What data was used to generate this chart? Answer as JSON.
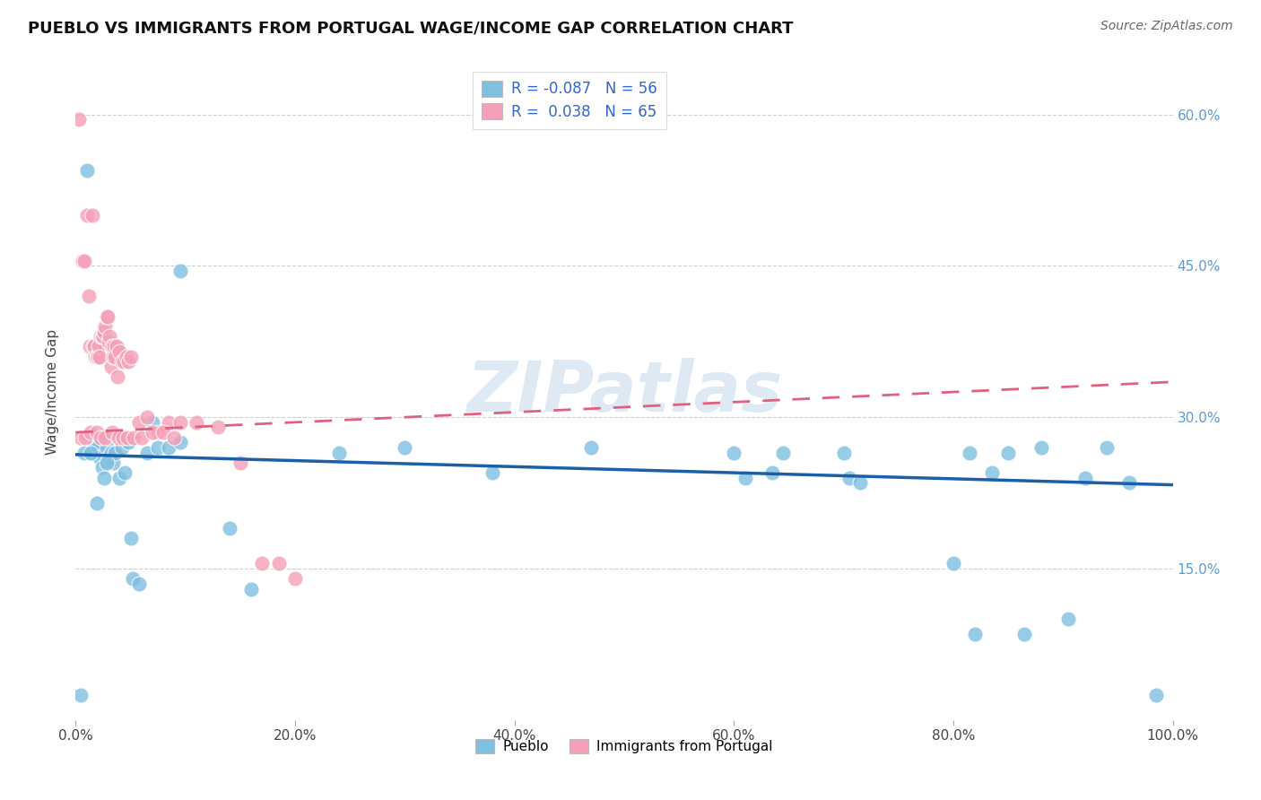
{
  "title": "PUEBLO VS IMMIGRANTS FROM PORTUGAL WAGE/INCOME GAP CORRELATION CHART",
  "source": "Source: ZipAtlas.com",
  "ylabel": "Wage/Income Gap",
  "xmin": 0.0,
  "xmax": 1.0,
  "ymin": 0.0,
  "ymax": 0.65,
  "xticks": [
    0.0,
    0.2,
    0.4,
    0.6,
    0.8,
    1.0
  ],
  "yticks": [
    0.15,
    0.3,
    0.45,
    0.6
  ],
  "xtick_labels": [
    "0.0%",
    "20.0%",
    "40.0%",
    "60.0%",
    "80.0%",
    "100.0%"
  ],
  "ytick_labels_right": [
    "15.0%",
    "30.0%",
    "45.0%",
    "60.0%"
  ],
  "background_color": "#ffffff",
  "grid_color": "#d0d0d0",
  "watermark": "ZIPatlas",
  "blue_color": "#7fbfdf",
  "pink_color": "#f4a0b8",
  "blue_line_color": "#1a5fa8",
  "pink_line_color": "#e06080",
  "R_blue": "-0.087",
  "N_blue": "56",
  "R_pink": "0.038",
  "N_pink": "65",
  "blue_x": [
    0.005,
    0.01,
    0.015,
    0.015,
    0.02,
    0.022,
    0.025,
    0.028,
    0.03,
    0.032,
    0.035,
    0.038,
    0.04,
    0.042,
    0.045,
    0.05,
    0.055,
    0.06,
    0.065,
    0.07,
    0.08,
    0.09,
    0.1,
    0.12,
    0.14,
    0.16,
    0.2,
    0.25,
    0.3,
    0.35,
    0.38,
    0.4,
    0.6,
    0.62,
    0.64,
    0.65,
    0.7,
    0.71,
    0.72,
    0.8,
    0.81,
    0.82,
    0.83,
    0.85,
    0.86,
    0.88,
    0.9,
    0.92,
    0.95,
    0.98,
    0.015,
    0.025,
    0.03,
    0.04,
    0.05,
    0.06
  ],
  "blue_y": [
    0.025,
    0.545,
    0.27,
    0.25,
    0.27,
    0.26,
    0.28,
    0.27,
    0.27,
    0.285,
    0.31,
    0.27,
    0.255,
    0.265,
    0.24,
    0.14,
    0.255,
    0.265,
    0.27,
    0.27,
    0.265,
    0.44,
    0.27,
    0.275,
    0.19,
    0.13,
    0.265,
    0.27,
    0.27,
    0.27,
    0.245,
    0.265,
    0.265,
    0.24,
    0.25,
    0.265,
    0.265,
    0.24,
    0.24,
    0.16,
    0.265,
    0.085,
    0.245,
    0.265,
    0.085,
    0.265,
    0.1,
    0.24,
    0.265,
    0.025,
    0.26,
    0.22,
    0.245,
    0.24,
    0.18,
    0.29
  ],
  "pink_x": [
    0.005,
    0.008,
    0.01,
    0.012,
    0.015,
    0.016,
    0.018,
    0.02,
    0.022,
    0.024,
    0.026,
    0.028,
    0.03,
    0.032,
    0.033,
    0.035,
    0.038,
    0.04,
    0.042,
    0.044,
    0.046,
    0.048,
    0.05,
    0.055,
    0.06,
    0.065,
    0.07,
    0.075,
    0.08,
    0.09,
    0.1,
    0.11,
    0.12,
    0.13,
    0.14,
    0.15,
    0.16,
    0.17,
    0.18,
    0.19,
    0.2,
    0.21,
    0.22,
    0.23,
    0.24,
    0.006,
    0.009,
    0.013,
    0.017,
    0.021,
    0.025,
    0.029,
    0.034,
    0.036,
    0.039,
    0.041,
    0.043,
    0.047,
    0.052,
    0.058,
    0.063,
    0.068,
    0.073,
    0.078,
    0.088
  ],
  "pink_y": [
    0.595,
    0.46,
    0.46,
    0.42,
    0.5,
    0.38,
    0.37,
    0.36,
    0.36,
    0.4,
    0.38,
    0.4,
    0.37,
    0.36,
    0.37,
    0.38,
    0.34,
    0.36,
    0.36,
    0.35,
    0.34,
    0.36,
    0.36,
    0.38,
    0.37,
    0.29,
    0.3,
    0.29,
    0.3,
    0.3,
    0.3,
    0.3,
    0.3,
    0.29,
    0.3,
    0.25,
    0.155,
    0.155,
    0.155,
    0.155,
    0.155,
    0.155,
    0.14,
    0.12,
    0.13,
    0.28,
    0.28,
    0.285,
    0.29,
    0.285,
    0.285,
    0.28,
    0.28,
    0.285,
    0.29,
    0.29,
    0.285,
    0.28,
    0.28,
    0.28,
    0.285,
    0.29,
    0.285,
    0.28,
    0.28
  ]
}
